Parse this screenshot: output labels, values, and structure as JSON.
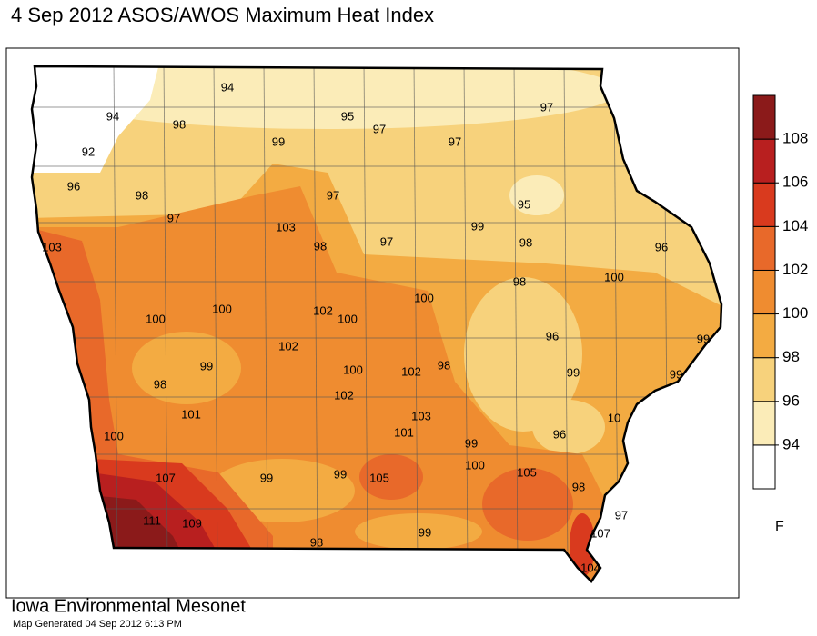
{
  "header": {
    "title": "4 Sep 2012 ASOS/AWOS Maximum Heat Index"
  },
  "map": {
    "stations": [
      94,
      94,
      92,
      98,
      99,
      95,
      97,
      97,
      97,
      96,
      98,
      97,
      97,
      95,
      103,
      98,
      97,
      99,
      98,
      96,
      103,
      98,
      100,
      100,
      102,
      100,
      100,
      100,
      96,
      99,
      102,
      99,
      100,
      102,
      98,
      99,
      99,
      98,
      102,
      101,
      103,
      101,
      10,
      100,
      99,
      96,
      107,
      99,
      99,
      105,
      100,
      105,
      98,
      97,
      111,
      109,
      98,
      99,
      107,
      104
    ]
  },
  "legend": {
    "ticks": [
      94,
      96,
      98,
      100,
      102,
      104,
      106,
      108
    ],
    "colors": [
      "#ffffff",
      "#fbecb8",
      "#f7d27c",
      "#f3ab42",
      "#ef8c30",
      "#e8692a",
      "#d93a1e",
      "#b81f1f",
      "#8b1a1a"
    ],
    "unit": "F"
  },
  "footer": {
    "org": "Iowa Environmental Mesonet",
    "generated": "Map Generated 04 Sep 2012 6:13 PM"
  }
}
